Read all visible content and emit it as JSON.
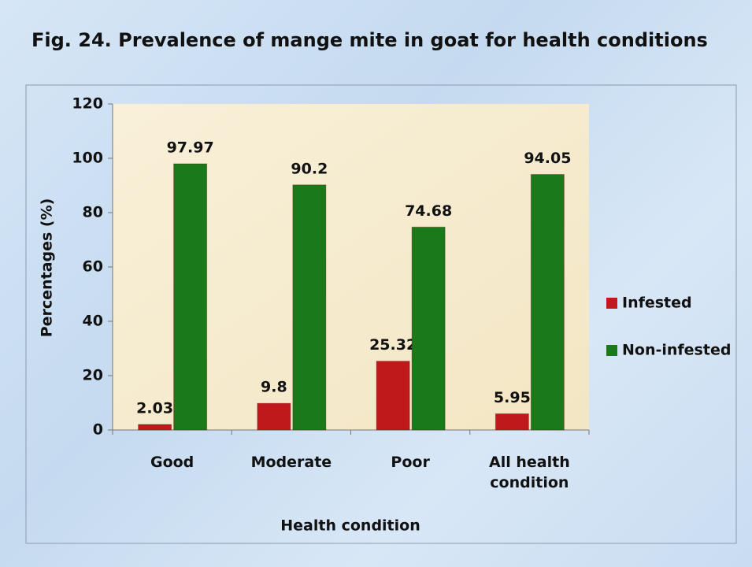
{
  "chart_data": {
    "type": "bar",
    "title": "Fig. 24. Prevalence of mange mite in goat for health conditions",
    "x_label": "Health condition",
    "y_label": "Percentages (%)",
    "categories": [
      "Good",
      "Moderate",
      "Poor",
      "All health condition"
    ],
    "series": [
      {
        "name": "Infested",
        "color": "#c0191b",
        "values": [
          2.03,
          9.8,
          25.32,
          5.95
        ]
      },
      {
        "name": "Non-infested",
        "color": "#1a7a1a",
        "values": [
          97.97,
          90.2,
          74.68,
          94.05
        ]
      }
    ],
    "ylim": [
      0,
      120
    ],
    "yticks": [
      0,
      20,
      40,
      60,
      80,
      100,
      120
    ],
    "legend": "right"
  }
}
